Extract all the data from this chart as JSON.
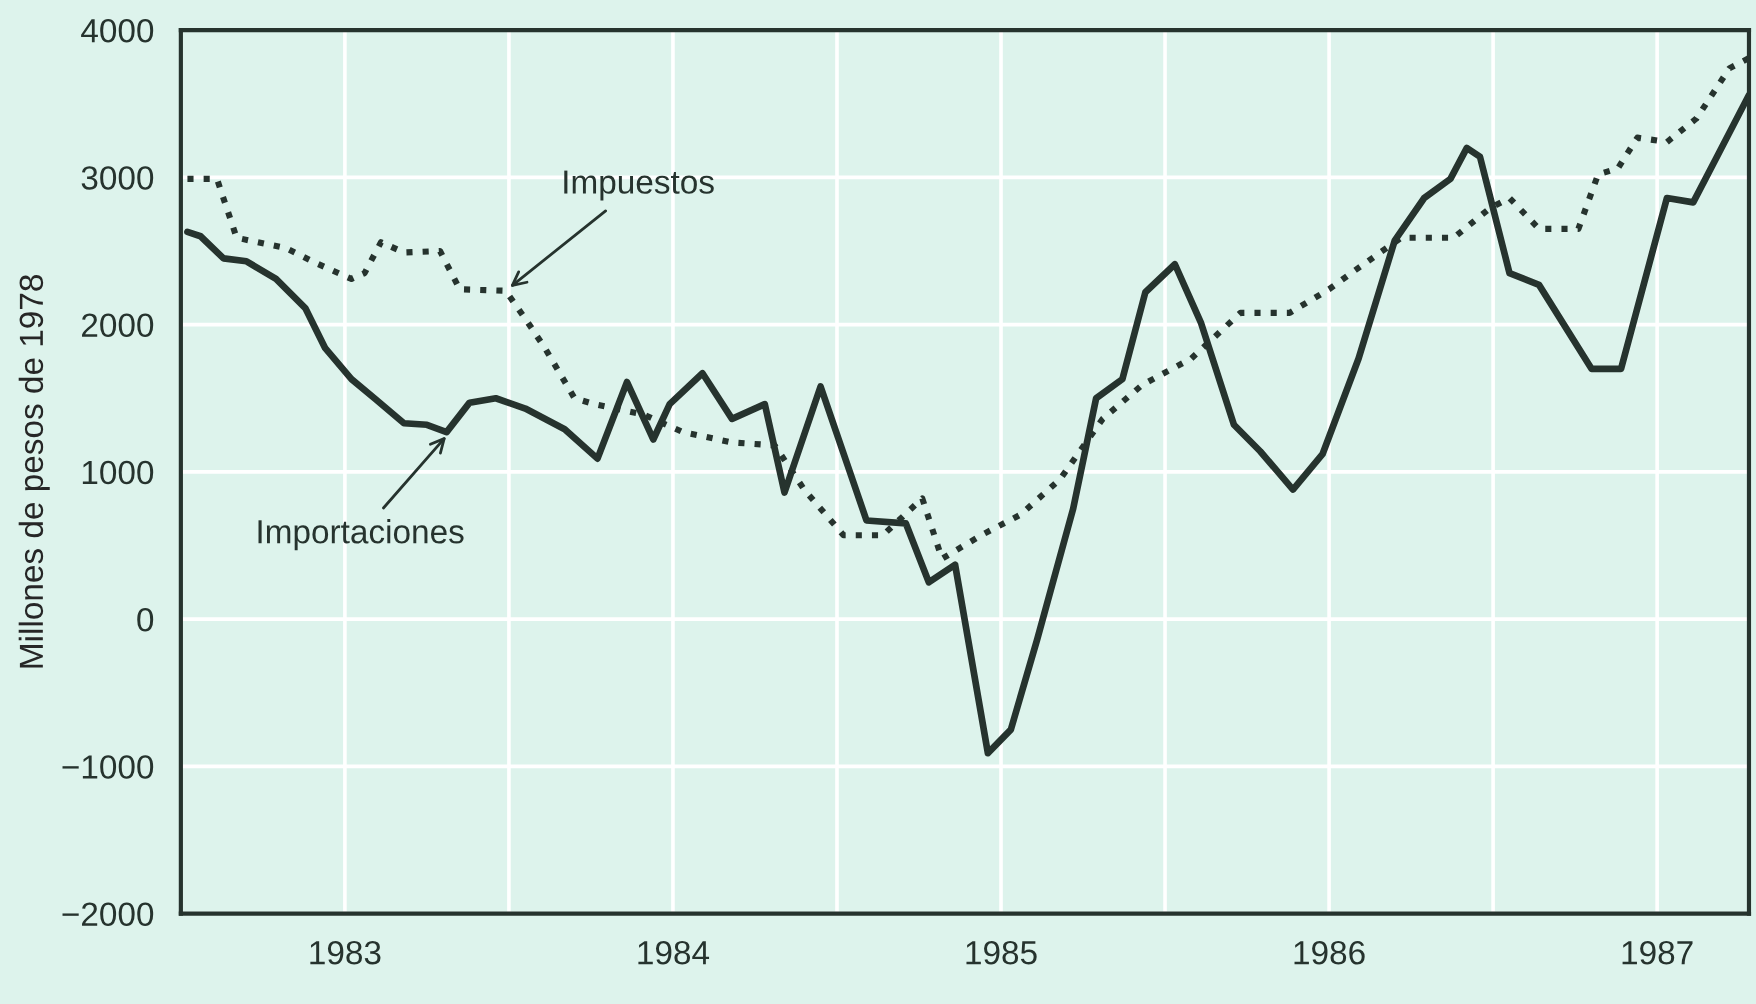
{
  "chart_data": {
    "type": "line",
    "ylabel": "Millones de pesos de 1978",
    "xlim": [
      1983.0,
      1987.78
    ],
    "ylim": [
      -2000,
      4000
    ],
    "yticks": [
      -2000,
      -1000,
      0,
      1000,
      2000,
      3000,
      4000
    ],
    "xticks": [
      {
        "value": 1983.5,
        "label": "1983"
      },
      {
        "value": 1984,
        "label": null
      },
      {
        "value": 1984.5,
        "label": "1984"
      },
      {
        "value": 1985,
        "label": null
      },
      {
        "value": 1985.5,
        "label": "1985"
      },
      {
        "value": 1986,
        "label": null
      },
      {
        "value": 1986.5,
        "label": "1986"
      },
      {
        "value": 1987,
        "label": null
      },
      {
        "value": 1987.5,
        "label": "1987"
      }
    ],
    "grid": true,
    "legend": false,
    "marker": "none",
    "series": [
      {
        "color": "#26332e",
        "line_style": "solid",
        "x": [
          1983.02,
          1983.06,
          1983.13,
          1983.2,
          1983.29,
          1983.38,
          1983.44,
          1983.52,
          1983.59,
          1983.68,
          1983.75,
          1983.81,
          1983.88,
          1983.96,
          1984.05,
          1984.17,
          1984.27,
          1984.36,
          1984.44,
          1984.49,
          1984.59,
          1984.68,
          1984.78,
          1984.84,
          1984.95,
          1985.09,
          1985.21,
          1985.28,
          1985.36,
          1985.46,
          1985.53,
          1985.61,
          1985.72,
          1985.79,
          1985.87,
          1985.94,
          1986.03,
          1986.11,
          1986.21,
          1986.29,
          1986.39,
          1986.48,
          1986.59,
          1986.7,
          1986.79,
          1986.87,
          1986.92,
          1986.96,
          1987.05,
          1987.14,
          1987.3,
          1987.39,
          1987.53,
          1987.61,
          1987.68,
          1987.78
        ],
        "values": [
          2630,
          2600,
          2450,
          2430,
          2310,
          2110,
          1840,
          1630,
          1500,
          1330,
          1320,
          1270,
          1470,
          1500,
          1430,
          1290,
          1090,
          1610,
          1220,
          1460,
          1670,
          1360,
          1460,
          860,
          1580,
          670,
          650,
          250,
          370,
          -910,
          -750,
          -140,
          750,
          1500,
          1630,
          2220,
          2410,
          2010,
          1320,
          1140,
          880,
          1120,
          1770,
          2570,
          2860,
          2990,
          3200,
          3140,
          2350,
          2270,
          1700,
          1700,
          2860,
          2830,
          3130,
          3560
        ]
      },
      {
        "color": "#26332e",
        "line_style": "dotted",
        "x": [
          1983.02,
          1983.11,
          1983.17,
          1983.32,
          1983.41,
          1983.52,
          1983.56,
          1983.61,
          1983.68,
          1983.79,
          1983.85,
          1983.99,
          1984.05,
          1984.11,
          1984.2,
          1984.26,
          1984.41,
          1984.53,
          1984.68,
          1984.81,
          1984.9,
          1985.02,
          1985.14,
          1985.26,
          1985.32,
          1985.44,
          1985.56,
          1985.68,
          1985.81,
          1985.93,
          1986.08,
          1986.23,
          1986.38,
          1986.5,
          1986.58,
          1986.72,
          1986.88,
          1986.99,
          1987.05,
          1987.14,
          1987.26,
          1987.32,
          1987.38,
          1987.44,
          1987.53,
          1987.62,
          1987.72,
          1987.78
        ],
        "values": [
          2990,
          2990,
          2590,
          2520,
          2420,
          2310,
          2350,
          2560,
          2490,
          2500,
          2240,
          2230,
          2040,
          1840,
          1500,
          1460,
          1390,
          1270,
          1200,
          1180,
          880,
          570,
          570,
          820,
          410,
          570,
          710,
          950,
          1360,
          1590,
          1770,
          2080,
          2080,
          2240,
          2370,
          2590,
          2590,
          2790,
          2860,
          2650,
          2650,
          3020,
          3060,
          3270,
          3240,
          3400,
          3740,
          3810
        ]
      }
    ],
    "annotations": [
      {
        "text": "Impuestos",
        "x": 1983.99,
        "y": 2230
      },
      {
        "text": "Importaciones",
        "x": 1983.82,
        "y": 1270
      }
    ]
  }
}
